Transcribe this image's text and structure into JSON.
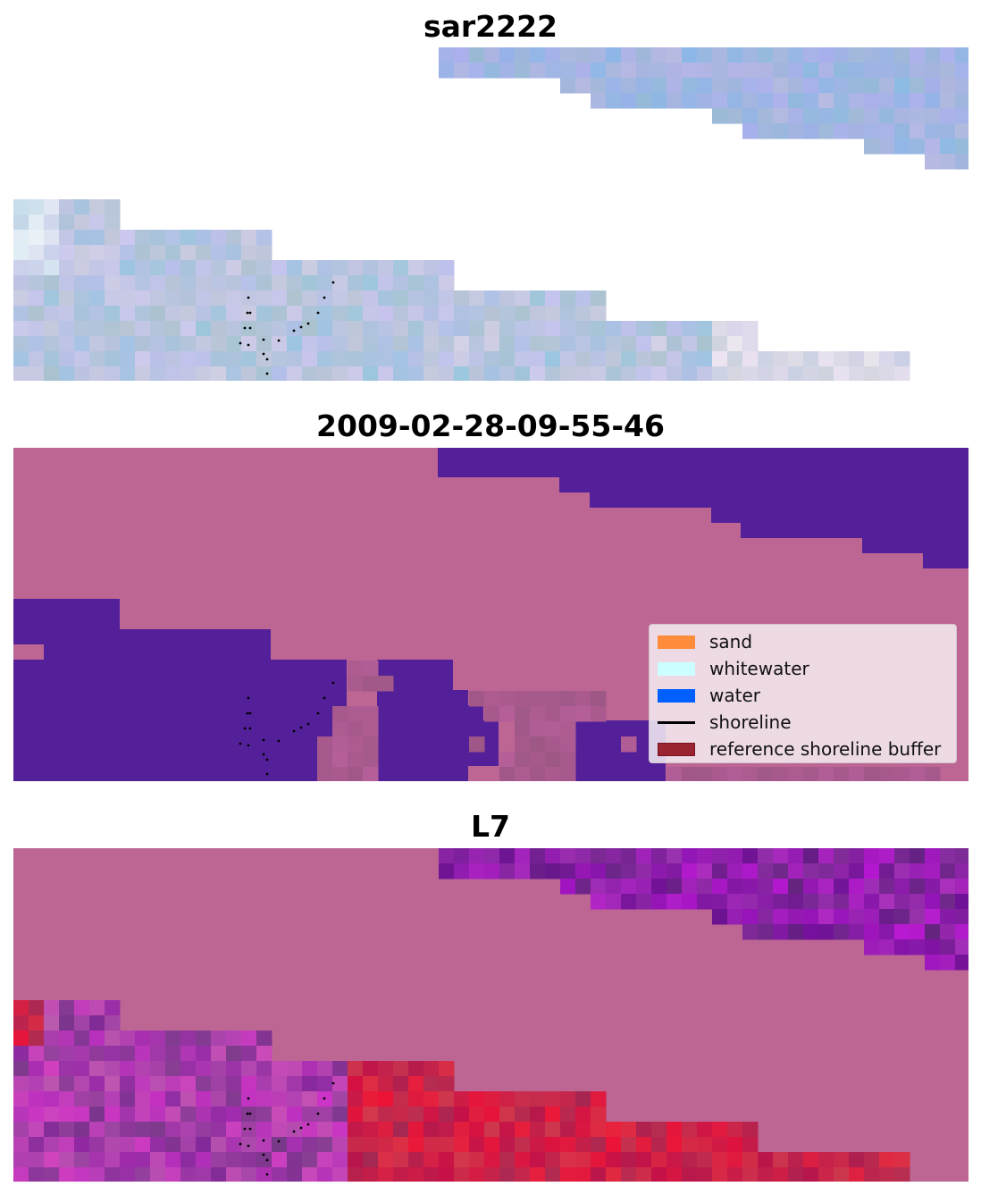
{
  "titles": {
    "top": "sar2222",
    "middle": "2009-02-28-09-55-46",
    "bottom": "L7"
  },
  "legend": {
    "items": [
      {
        "label": "sand",
        "kind": "patch",
        "color": "#ff8c3a",
        "edge": "#ff8c3a"
      },
      {
        "label": "whitewater",
        "kind": "patch",
        "color": "#ccffff",
        "edge": "#ccffff"
      },
      {
        "label": "water",
        "kind": "patch",
        "color": "#0060ff",
        "edge": "#0060ff"
      },
      {
        "label": "shoreline",
        "kind": "line",
        "color": "#000000"
      },
      {
        "label": "reference shoreline buffer",
        "kind": "patch",
        "color": "#9a2530",
        "edge": "#7a1020"
      }
    ]
  },
  "colors": {
    "background": "#bd6694",
    "water_class": "#54209a",
    "buffer_class": "#a6628e",
    "shoreline_points": "#000000"
  }
}
